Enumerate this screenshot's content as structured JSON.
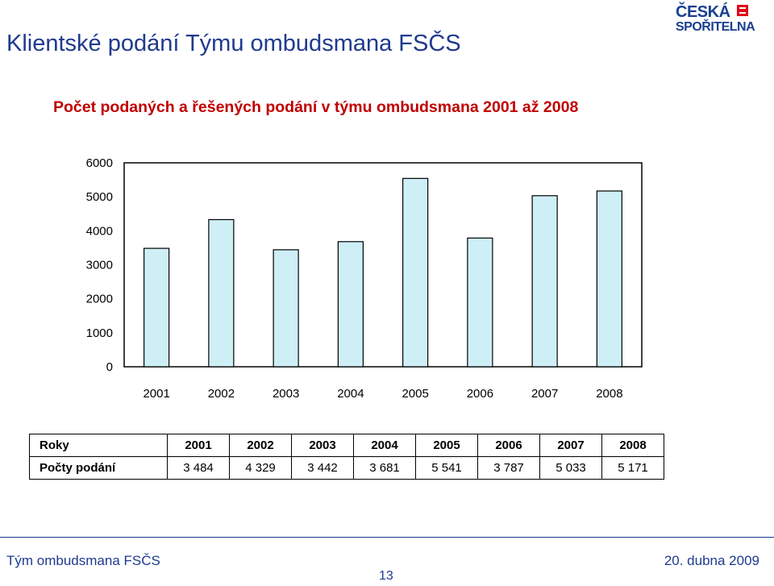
{
  "slide": {
    "title": "Klientské podání Týmu ombudsmana FSČS",
    "footer_left": "Tým ombudsmana FSČS",
    "footer_right": "20. dubna 2009",
    "page_number": "13"
  },
  "logo": {
    "line1": "ČESKÁ",
    "line2": "SPOŘITELNA",
    "color": "#1a3f8f",
    "mark_color": "#e2001a"
  },
  "colors": {
    "title": "#1f3a8f",
    "chart_title": "#c00000",
    "bar_fill": "#cdeff5",
    "bar_stroke": "#000000"
  },
  "chart_data": {
    "type": "bar",
    "title": "Počet podaných a řešených podání v týmu ombudsmana 2001 až 2008",
    "categories": [
      "2001",
      "2002",
      "2003",
      "2004",
      "2005",
      "2006",
      "2007",
      "2008"
    ],
    "values": [
      3484,
      4329,
      3442,
      3681,
      5541,
      3787,
      5033,
      5171
    ],
    "ylim": [
      0,
      6000
    ],
    "yticks": [
      0,
      1000,
      2000,
      3000,
      4000,
      5000,
      6000
    ],
    "grid": false,
    "legend": "none"
  },
  "table": {
    "row_years_label": "Roky",
    "row_counts_label": "Počty podání",
    "years": [
      "2001",
      "2002",
      "2003",
      "2004",
      "2005",
      "2006",
      "2007",
      "2008"
    ],
    "counts": [
      "3 484",
      "4 329",
      "3 442",
      "3 681",
      "5 541",
      "3 787",
      "5 033",
      "5 171"
    ]
  }
}
